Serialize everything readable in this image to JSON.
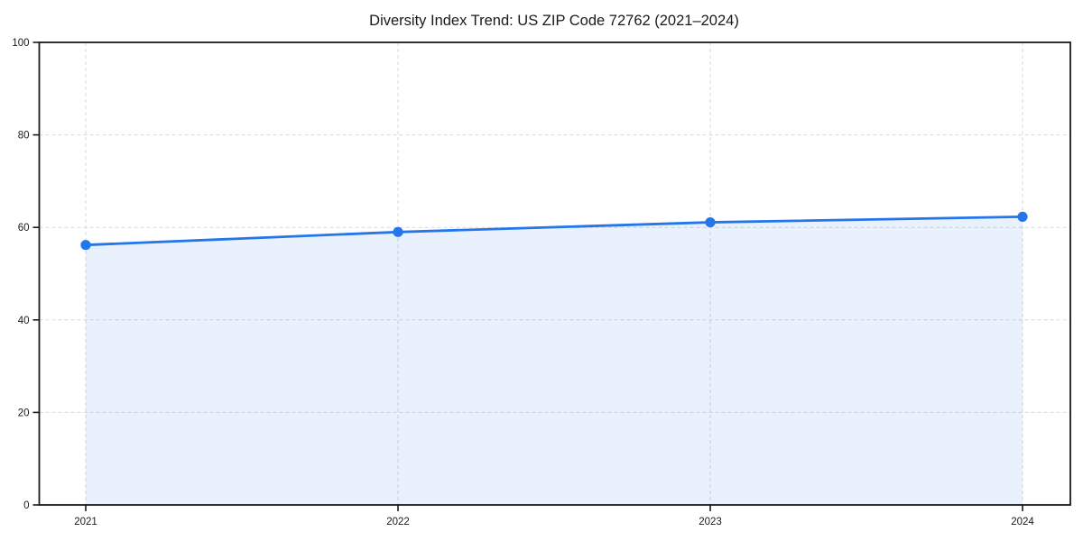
{
  "page": {
    "background": "#ffffff"
  },
  "chart_data": {
    "type": "area",
    "title": "Diversity Index Trend: US ZIP Code 72762 (2021–2024)",
    "categories": [
      "2021",
      "2022",
      "2023",
      "2024"
    ],
    "series": [
      {
        "name": "Diversity Index",
        "values": [
          56.2,
          59.0,
          61.1,
          62.3
        ]
      }
    ],
    "xlabel": "",
    "ylabel": "",
    "ylim": [
      0,
      100
    ],
    "yticks": [
      0,
      20,
      40,
      60,
      80,
      100
    ],
    "grid": true,
    "grid_style": "dashed",
    "legend": false,
    "marker": "circle",
    "colors": {
      "line": "#2575eb",
      "marker": "#2575eb",
      "fill_opacity": "0.10",
      "grid": "#d9d9d9",
      "spine": "#1a1a1a",
      "text": "#1a1a1a",
      "background": "#ffffff"
    }
  }
}
